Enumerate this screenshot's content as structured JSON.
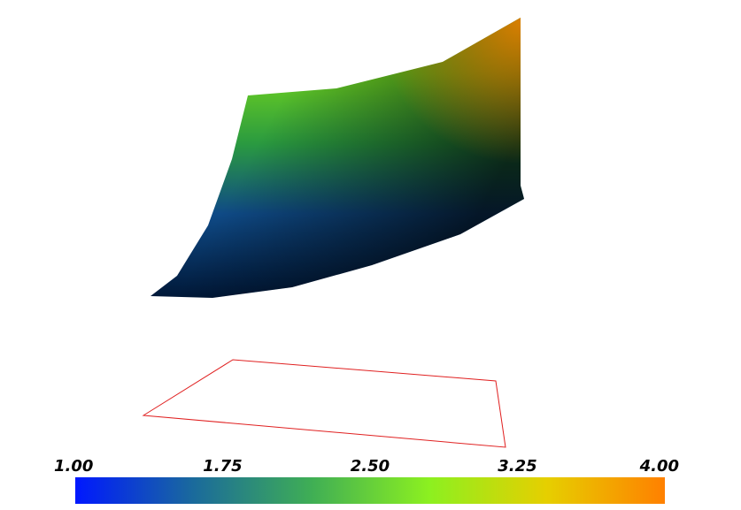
{
  "chart_data": {
    "type": "colorbar",
    "xlim": [
      1,
      4
    ],
    "xticks": [
      {
        "value": 1,
        "label": "1.00"
      },
      {
        "value": 1.75,
        "label": "1.75"
      },
      {
        "value": 2.5,
        "label": "2.50"
      },
      {
        "value": 3.25,
        "label": "3.25"
      },
      {
        "value": 4,
        "label": "4.00"
      }
    ],
    "colors": [
      "#0018ff",
      "#1a6a9c",
      "#3fae55",
      "#8cf020",
      "#e6cf00",
      "#ff8000"
    ]
  }
}
